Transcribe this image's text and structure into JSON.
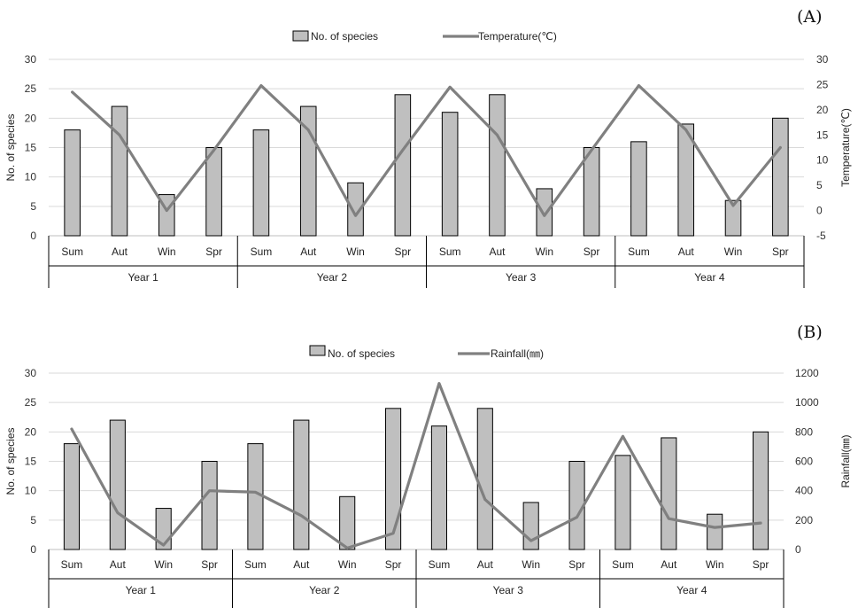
{
  "chart_data": [
    {
      "panel_label": "(A)",
      "type": "bar+line",
      "groups": [
        "Year 1",
        "Year 2",
        "Year 3",
        "Year 4"
      ],
      "categories": [
        "Sum",
        "Aut",
        "Win",
        "Spr",
        "Sum",
        "Aut",
        "Win",
        "Spr",
        "Sum",
        "Aut",
        "Win",
        "Spr",
        "Sum",
        "Aut",
        "Win",
        "Spr"
      ],
      "series": [
        {
          "name": "No. of species",
          "kind": "bar",
          "axis": "left",
          "color": "#bfbfbf",
          "values": [
            18,
            22,
            7,
            15,
            18,
            22,
            9,
            24,
            21,
            24,
            8,
            15,
            16,
            19,
            6,
            20
          ]
        },
        {
          "name": "Temperature(℃)",
          "kind": "line",
          "axis": "right",
          "color": "#808080",
          "values": [
            23.5,
            15,
            0,
            12,
            24.8,
            16,
            -1,
            12,
            24.5,
            15,
            -1,
            12,
            24.8,
            16,
            1,
            12.5
          ]
        }
      ],
      "ylabel": "No. of species",
      "y2label": "Temperature(℃)",
      "ylim": [
        0,
        30
      ],
      "yticks": [
        "0",
        "5",
        "10",
        "15",
        "20",
        "25",
        "30"
      ],
      "y2lim": [
        -5,
        30
      ],
      "y2ticks": [
        "-5",
        "0",
        "5",
        "10",
        "15",
        "20",
        "25",
        "30"
      ],
      "grid": true,
      "legend": "top-center"
    },
    {
      "panel_label": "(B)",
      "type": "bar+line",
      "groups": [
        "Year 1",
        "Year 2",
        "Year 3",
        "Year 4"
      ],
      "categories": [
        "Sum",
        "Aut",
        "Win",
        "Spr",
        "Sum",
        "Aut",
        "Win",
        "Spr",
        "Sum",
        "Aut",
        "Win",
        "Spr",
        "Sum",
        "Aut",
        "Win",
        "Spr"
      ],
      "series": [
        {
          "name": "No. of species",
          "kind": "bar",
          "axis": "left",
          "color": "#bfbfbf",
          "values": [
            18,
            22,
            7,
            15,
            18,
            22,
            9,
            24,
            21,
            24,
            8,
            15,
            16,
            19,
            6,
            20
          ]
        },
        {
          "name": "Rainfall(㎜)",
          "kind": "line",
          "axis": "right",
          "color": "#808080",
          "values": [
            820,
            250,
            30,
            400,
            390,
            230,
            10,
            110,
            1130,
            340,
            60,
            220,
            770,
            210,
            150,
            180
          ]
        }
      ],
      "ylabel": "No. of species",
      "y2label": "Rainfall(㎜)",
      "ylim": [
        0,
        30
      ],
      "yticks": [
        "0",
        "5",
        "10",
        "15",
        "20",
        "25",
        "30"
      ],
      "y2lim": [
        0,
        1200
      ],
      "y2ticks": [
        "0",
        "200",
        "400",
        "600",
        "800",
        "1000",
        "1200"
      ],
      "grid": true,
      "legend": "top-center"
    }
  ]
}
